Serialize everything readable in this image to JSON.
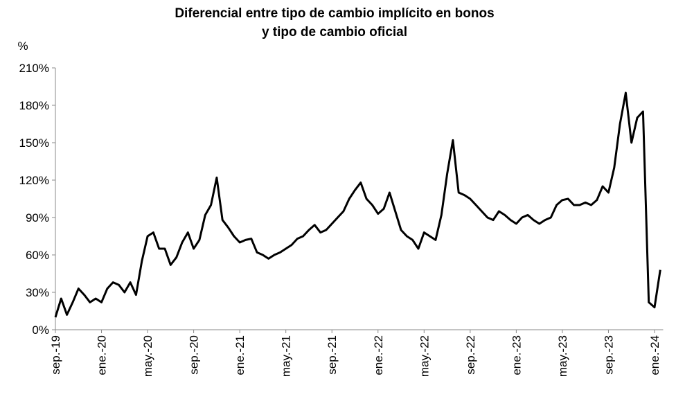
{
  "chart_data": {
    "type": "line",
    "title": [
      "Diferencial entre tipo de cambio implícito en bonos",
      "y tipo de cambio oficial"
    ],
    "ylabel": "%",
    "categories": [
      "sep.-19",
      null,
      null,
      null,
      null,
      null,
      null,
      null,
      "ene.-20",
      null,
      null,
      null,
      null,
      null,
      null,
      null,
      "may.-20",
      null,
      null,
      null,
      null,
      null,
      null,
      null,
      "sep.-20",
      null,
      null,
      null,
      null,
      null,
      null,
      null,
      "ene.-21",
      null,
      null,
      null,
      null,
      null,
      null,
      null,
      "may.-21",
      null,
      null,
      null,
      null,
      null,
      null,
      null,
      "sep.-21",
      null,
      null,
      null,
      null,
      null,
      null,
      null,
      "ene.-22",
      null,
      null,
      null,
      null,
      null,
      null,
      null,
      "may.-22",
      null,
      null,
      null,
      null,
      null,
      null,
      null,
      "sep.-22",
      null,
      null,
      null,
      null,
      null,
      null,
      null,
      "ene.-23",
      null,
      null,
      null,
      null,
      null,
      null,
      null,
      "may.-23",
      null,
      null,
      null,
      null,
      null,
      null,
      null,
      "sep.-23",
      null,
      null,
      null,
      null,
      null,
      null,
      null,
      "ene.-24",
      null
    ],
    "series": [
      {
        "color": "#000000",
        "values": [
          10,
          25,
          12,
          22,
          33,
          28,
          22,
          25,
          22,
          33,
          38,
          36,
          30,
          38,
          28,
          55,
          75,
          78,
          65,
          65,
          52,
          58,
          70,
          78,
          65,
          72,
          92,
          100,
          122,
          88,
          82,
          75,
          70,
          72,
          73,
          62,
          60,
          57,
          60,
          62,
          65,
          68,
          73,
          75,
          80,
          84,
          78,
          80,
          85,
          90,
          95,
          105,
          112,
          118,
          105,
          100,
          93,
          97,
          110,
          95,
          80,
          75,
          72,
          65,
          78,
          75,
          72,
          92,
          125,
          152,
          110,
          108,
          105,
          100,
          95,
          90,
          88,
          95,
          92,
          88,
          85,
          90,
          92,
          88,
          85,
          88,
          90,
          100,
          104,
          105,
          100,
          100,
          102,
          100,
          104,
          115,
          110,
          130,
          165,
          190,
          150,
          170,
          175,
          22,
          18,
          48
        ]
      }
    ],
    "ylim": [
      0,
      210
    ],
    "yticks": [
      {
        "value": 0,
        "label": "0%"
      },
      {
        "value": 30,
        "label": "30%"
      },
      {
        "value": 60,
        "label": "60%"
      },
      {
        "value": 90,
        "label": "90%"
      },
      {
        "value": 120,
        "label": "120%"
      },
      {
        "value": 150,
        "label": "150%"
      },
      {
        "value": 180,
        "label": "180%"
      },
      {
        "value": 210,
        "label": "210%"
      }
    ],
    "grid": false
  }
}
